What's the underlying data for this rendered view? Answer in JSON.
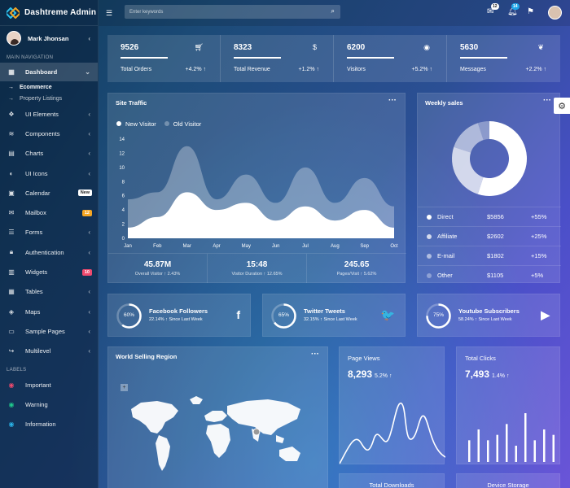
{
  "brand": {
    "name": "Dashtreme Admin"
  },
  "user": {
    "name": "Mark Jhonsan"
  },
  "nav": {
    "main_label": "MAIN NAVIGATION",
    "dashboard": "Dashboard",
    "sub": [
      "Ecommerce",
      "Property Listings"
    ],
    "items": [
      {
        "label": "UI Elements",
        "icon": "cube-icon"
      },
      {
        "label": "Components",
        "icon": "layers-icon"
      },
      {
        "label": "Charts",
        "icon": "chart-icon"
      },
      {
        "label": "UI Icons",
        "icon": "contrast-icon"
      },
      {
        "label": "Calendar",
        "icon": "calendar-icon",
        "badge": "New"
      },
      {
        "label": "Mailbox",
        "icon": "mail-icon",
        "badge": "12"
      },
      {
        "label": "Forms",
        "icon": "list-icon"
      },
      {
        "label": "Authentication",
        "icon": "lock-icon"
      },
      {
        "label": "Widgets",
        "icon": "widget-icon",
        "badge": "10"
      },
      {
        "label": "Tables",
        "icon": "table-icon"
      },
      {
        "label": "Maps",
        "icon": "map-icon"
      },
      {
        "label": "Sample Pages",
        "icon": "page-icon"
      },
      {
        "label": "Multilevel",
        "icon": "share-icon"
      }
    ],
    "labels_label": "LABELS",
    "labels": [
      {
        "label": "Important",
        "color": "#f04a6e"
      },
      {
        "label": "Warning",
        "color": "#1fc98c"
      },
      {
        "label": "Information",
        "color": "#2ab4e8"
      }
    ]
  },
  "topbar": {
    "search_placeholder": "Enter keywords",
    "mail_count": "12",
    "bell_count": "14"
  },
  "stats": [
    {
      "value": "9526",
      "label": "Total Orders",
      "change": "+4.2%"
    },
    {
      "value": "8323",
      "label": "Total Revenue",
      "change": "+1.2%"
    },
    {
      "value": "6200",
      "label": "Visitors",
      "change": "+5.2%"
    },
    {
      "value": "5630",
      "label": "Messages",
      "change": "+2.2%"
    }
  ],
  "site_traffic": {
    "title": "Site Traffic",
    "footer": [
      {
        "value": "45.87M",
        "label": "Overall Visitor",
        "change": "2.43%"
      },
      {
        "value": "15:48",
        "label": "Visitor Duration",
        "change": "12.65%"
      },
      {
        "value": "245.65",
        "label": "Pages/Visit",
        "change": "5.62%"
      }
    ]
  },
  "weekly_sales": {
    "title": "Weekly sales",
    "rows": [
      {
        "label": "Direct",
        "amount": "$5856",
        "pct": "+55%"
      },
      {
        "label": "Affiliate",
        "amount": "$2602",
        "pct": "+25%"
      },
      {
        "label": "E-mail",
        "amount": "$1802",
        "pct": "+15%"
      },
      {
        "label": "Other",
        "amount": "$1105",
        "pct": "+5%"
      }
    ]
  },
  "social": [
    {
      "pct": "60%",
      "title": "Facebook Followers",
      "sub": "22.14%",
      "since": "Since Last Week",
      "icon": "f"
    },
    {
      "pct": "65%",
      "title": "Twitter Tweets",
      "sub": "32.15%",
      "since": "Since Last Week",
      "icon": "🐦"
    },
    {
      "pct": "75%",
      "title": "Youtube Subscribers",
      "sub": "58.24%",
      "since": "Since Last Week",
      "icon": "▶"
    }
  ],
  "world": {
    "title": "World Selling Region"
  },
  "page_views": {
    "title": "Page Views",
    "value": "8,293",
    "change": "5.2%"
  },
  "total_clicks": {
    "title": "Total Clicks",
    "value": "7,493",
    "change": "1.4%"
  },
  "bottom": {
    "downloads": "Total Downloads",
    "storage": "Device Storage"
  },
  "chart_data": [
    {
      "type": "area",
      "title": "Site Traffic",
      "x": [
        "Jan",
        "Feb",
        "Mar",
        "Apr",
        "May",
        "Jun",
        "Jul",
        "Aug",
        "Sep",
        "Oct"
      ],
      "ylim": [
        0,
        14
      ],
      "yticks": [
        0,
        2,
        4,
        6,
        8,
        10,
        12,
        14
      ],
      "series": [
        {
          "name": "New Visitor",
          "values": [
            1.5,
            3,
            6.5,
            4,
            5,
            2.5,
            4.5,
            2.5,
            4,
            1.5
          ]
        },
        {
          "name": "Old Visitor",
          "values": [
            5.5,
            6.5,
            13,
            5.5,
            9,
            5,
            10,
            5,
            8.5,
            4.5
          ]
        }
      ]
    },
    {
      "type": "pie",
      "title": "Weekly sales",
      "categories": [
        "Direct",
        "Affiliate",
        "E-mail",
        "Other"
      ],
      "values": [
        55,
        25,
        15,
        5
      ]
    },
    {
      "type": "bar",
      "title": "Total Clicks",
      "values": [
        4,
        6,
        4,
        5,
        7,
        3,
        9,
        4,
        6,
        5
      ]
    }
  ]
}
